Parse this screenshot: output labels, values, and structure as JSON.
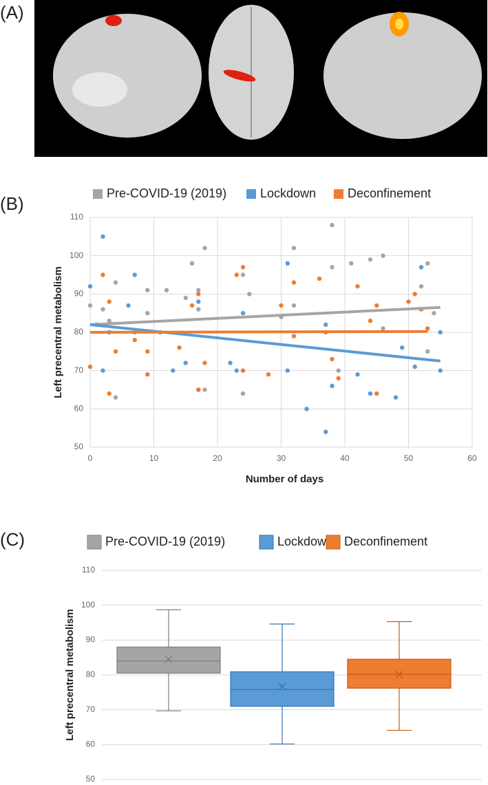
{
  "panel_labels": [
    "(A)",
    "(B)",
    "(C)"
  ],
  "chart_data": [
    {
      "type": "scatter",
      "xlabel": "Number of days",
      "ylabel": "Left precentral metabolism",
      "xlim": [
        0,
        60
      ],
      "xticks": [
        0,
        10,
        20,
        30,
        40,
        50,
        60
      ],
      "ylim": [
        50,
        110
      ],
      "yticks": [
        50,
        60,
        70,
        80,
        90,
        100,
        110
      ],
      "grid": true,
      "legend": "top",
      "series": [
        {
          "name": "Pre-COVID-19 (2019)",
          "color": "#a5a5a5",
          "x": [
            0,
            1,
            2,
            3,
            4,
            4,
            7,
            9,
            9,
            12,
            15,
            16,
            17,
            17,
            18,
            18,
            24,
            24,
            25,
            30,
            32,
            32,
            38,
            38,
            39,
            41,
            44,
            46,
            46,
            52,
            53,
            53,
            54
          ],
          "values": [
            87,
            82,
            86,
            83,
            93,
            63,
            80,
            85,
            91,
            91,
            89,
            98,
            91,
            86,
            102,
            65,
            95,
            64,
            90,
            84,
            102,
            87,
            97,
            108,
            70,
            98,
            99,
            100,
            81,
            92,
            98,
            75,
            85
          ],
          "trendline": {
            "x": [
              0,
              55
            ],
            "values": [
              82,
              86.5
            ]
          }
        },
        {
          "name": "Lockdown",
          "color": "#5b9bd5",
          "x": [
            0,
            2,
            2,
            3,
            6,
            7,
            11,
            13,
            15,
            17,
            17,
            22,
            23,
            24,
            31,
            31,
            34,
            37,
            37,
            38,
            42,
            44,
            48,
            49,
            51,
            52,
            55,
            55
          ],
          "values": [
            92,
            105,
            70,
            80,
            87,
            95,
            80,
            70,
            72,
            88,
            65,
            72,
            70,
            85,
            98,
            70,
            60,
            54,
            82,
            66,
            69,
            64,
            63,
            76,
            71,
            97,
            80,
            70
          ],
          "trendline": {
            "x": [
              0,
              55
            ],
            "values": [
              82,
              72.5
            ]
          }
        },
        {
          "name": "Deconfinement",
          "color": "#ed7d31",
          "x": [
            0,
            1,
            2,
            3,
            3,
            4,
            7,
            9,
            9,
            14,
            16,
            17,
            17,
            18,
            23,
            24,
            24,
            28,
            30,
            32,
            32,
            36,
            37,
            38,
            39,
            42,
            44,
            45,
            45,
            50,
            51,
            52,
            53
          ],
          "values": [
            71,
            82,
            95,
            88,
            64,
            75,
            78,
            69,
            75,
            76,
            87,
            90,
            65,
            72,
            95,
            97,
            70,
            69,
            87,
            93,
            79,
            94,
            80,
            73,
            68,
            92,
            83,
            87,
            64,
            88,
            90,
            86,
            81
          ],
          "trendline": {
            "x": [
              0,
              53
            ],
            "values": [
              80,
              80.2
            ]
          }
        }
      ]
    },
    {
      "type": "box",
      "ylabel": "Left precentral metabolism",
      "ylim": [
        50,
        110
      ],
      "yticks": [
        50,
        60,
        70,
        80,
        90,
        100,
        110
      ],
      "grid": true,
      "legend": "top",
      "series": [
        {
          "name": "Pre-COVID-19 (2019)",
          "color": "#a5a5a5",
          "edge": "#7f7f7f",
          "min": 69.7,
          "q1": 80.5,
          "median": 84,
          "q3": 88,
          "max": 98.7,
          "mean": 84.5
        },
        {
          "name": "Lockdown",
          "color": "#5b9bd5",
          "edge": "#2e75b6",
          "min": 60.2,
          "q1": 71,
          "median": 75.8,
          "q3": 80.9,
          "max": 94.6,
          "mean": 76.7
        },
        {
          "name": "Deconfinement",
          "color": "#ed7d31",
          "edge": "#c55a11",
          "min": 64.1,
          "q1": 76.2,
          "median": 80.2,
          "q3": 84.5,
          "max": 95.3,
          "mean": 80.1
        }
      ]
    }
  ]
}
